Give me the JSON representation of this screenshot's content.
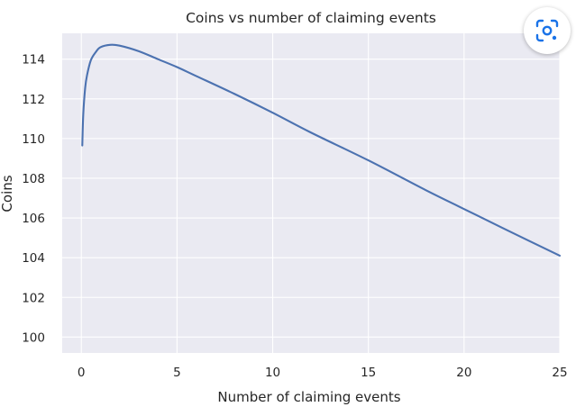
{
  "chart_data": {
    "type": "line",
    "title": "Coins vs number of claiming events",
    "xlabel": "Number of claiming events",
    "ylabel": "Coins",
    "xlim": [
      -1,
      25
    ],
    "ylim": [
      99.2,
      115.3
    ],
    "xticks": [
      0,
      5,
      10,
      15,
      20,
      25
    ],
    "yticks": [
      100,
      102,
      104,
      106,
      108,
      110,
      112,
      114
    ],
    "grid": true,
    "background": "#eaeaf2",
    "series": [
      {
        "color": "#4c72b0",
        "x": [
          0.05,
          0.1,
          0.2,
          0.3,
          0.5,
          0.75,
          1.0,
          1.5,
          2,
          3,
          4,
          5,
          6,
          8,
          10,
          12,
          15,
          18,
          20,
          22,
          25
        ],
        "y": [
          109.65,
          111.2,
          112.55,
          113.2,
          113.95,
          114.35,
          114.6,
          114.72,
          114.68,
          114.4,
          114.0,
          113.6,
          113.15,
          112.25,
          111.3,
          110.3,
          108.9,
          107.4,
          106.45,
          105.5,
          104.1
        ]
      }
    ]
  },
  "icons": {
    "lens": "google-lens-icon"
  }
}
